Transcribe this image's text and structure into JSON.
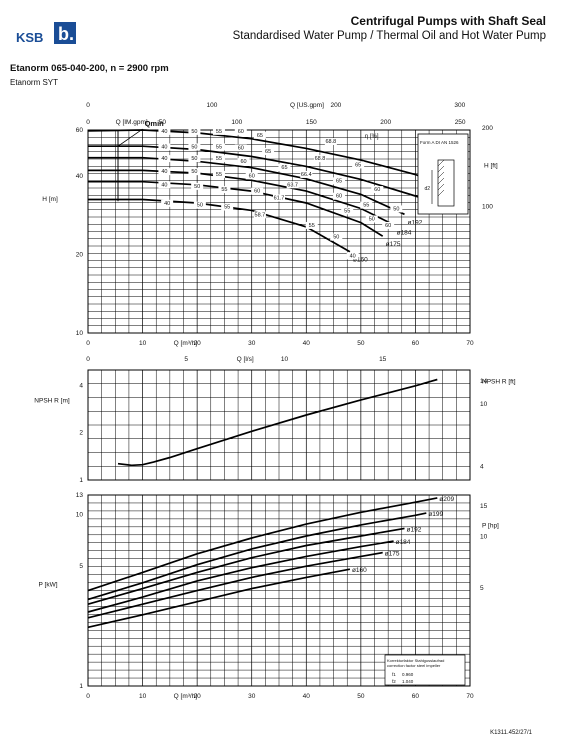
{
  "header": {
    "brand": "KSB",
    "title": "Centrifugal Pumps with Shaft Seal",
    "subtitle": "Standardised Water Pump / Thermal Oil and Hot Water Pump",
    "model": "Etanorm 065-040-200, n = 2900 rpm",
    "model_variant": "Etanorm SYT",
    "doc_code": "K1311.452/27/1"
  },
  "colors": {
    "brand": "#1a4d96",
    "grid": "#000000",
    "curve": "#000000"
  },
  "chart_data": [
    {
      "id": "head",
      "type": "line",
      "xlabel": "Q [m³/h]",
      "ylabel": "H [m]",
      "xlim": [
        0,
        70
      ],
      "ylim": [
        10,
        60
      ],
      "log_y": true,
      "x_ticks": [
        0,
        10,
        20,
        30,
        40,
        50,
        60,
        70
      ],
      "y_ticks": [
        10,
        20,
        40,
        60
      ],
      "top_axis_1": {
        "label": "Q [US.gpm]",
        "ticks": [
          0,
          100,
          200,
          300
        ]
      },
      "top_axis_2": {
        "label": "Q [IM.gpm]",
        "ticks": [
          0,
          50,
          100,
          150,
          200,
          250
        ]
      },
      "bottom_axis_2": {
        "label": "Q [l/s]",
        "ticks": [
          0,
          5,
          10,
          15
        ]
      },
      "right_axis": {
        "label": "H [ft]",
        "ticks": [
          100,
          200
        ]
      },
      "annotation_qmin": "Qmin",
      "eta_label": "η [%]",
      "inset_label": "Form A DI AN 1526",
      "inset_mark": "d2",
      "series": [
        {
          "name": "ø209",
          "x": [
            0,
            10,
            20,
            30,
            40,
            50,
            60,
            64
          ],
          "y": [
            59.5,
            60,
            58.5,
            55.5,
            51,
            46,
            40.5,
            37.5
          ]
        },
        {
          "name": "ø199",
          "x": [
            0,
            10,
            20,
            30,
            40,
            50,
            60,
            62
          ],
          "y": [
            52,
            52,
            50.5,
            47.5,
            43.5,
            38.8,
            33.5,
            32.5
          ]
        },
        {
          "name": "ø192",
          "x": [
            0,
            10,
            20,
            30,
            40,
            50,
            58
          ],
          "y": [
            47,
            47,
            45.5,
            43,
            39,
            34,
            28.5
          ]
        },
        {
          "name": "ø184",
          "x": [
            0,
            10,
            20,
            30,
            40,
            50,
            56
          ],
          "y": [
            42,
            42,
            41,
            38.5,
            35,
            30,
            26
          ]
        },
        {
          "name": "ø175",
          "x": [
            0,
            10,
            20,
            30,
            40,
            50,
            54
          ],
          "y": [
            38,
            38,
            37,
            35,
            31.5,
            26.5,
            23.5
          ]
        },
        {
          "name": "ø160",
          "x": [
            0,
            10,
            20,
            30,
            40,
            48
          ],
          "y": [
            32.5,
            32.5,
            31.5,
            29.5,
            25.5,
            20.5
          ]
        }
      ],
      "eta_labels": [
        {
          "t": "40",
          "x": 14,
          "y": 58.5
        },
        {
          "t": "50",
          "x": 19.5,
          "y": 58.5
        },
        {
          "t": "55",
          "x": 24,
          "y": 58.5
        },
        {
          "t": "60",
          "x": 28,
          "y": 58.5
        },
        {
          "t": "65",
          "x": 31.5,
          "y": 56.5
        },
        {
          "t": "68.8",
          "x": 44.5,
          "y": 53.5
        },
        {
          "t": "40",
          "x": 14,
          "y": 51
        },
        {
          "t": "50",
          "x": 19.5,
          "y": 51
        },
        {
          "t": "55",
          "x": 24,
          "y": 51
        },
        {
          "t": "60",
          "x": 28,
          "y": 50.5
        },
        {
          "t": "65",
          "x": 33,
          "y": 49
        },
        {
          "t": "68.8",
          "x": 42.5,
          "y": 46
        },
        {
          "t": "65",
          "x": 49.5,
          "y": 43.5
        },
        {
          "t": "40",
          "x": 14,
          "y": 46
        },
        {
          "t": "50",
          "x": 19.5,
          "y": 46
        },
        {
          "t": "55",
          "x": 24,
          "y": 46
        },
        {
          "t": "60",
          "x": 28.5,
          "y": 44.8
        },
        {
          "t": "65",
          "x": 36,
          "y": 42.5
        },
        {
          "t": "66.4",
          "x": 40,
          "y": 40
        },
        {
          "t": "65",
          "x": 46,
          "y": 37.8
        },
        {
          "t": "60",
          "x": 53,
          "y": 35
        },
        {
          "t": "40",
          "x": 14,
          "y": 41
        },
        {
          "t": "50",
          "x": 19.5,
          "y": 41
        },
        {
          "t": "55",
          "x": 24,
          "y": 40
        },
        {
          "t": "60",
          "x": 30,
          "y": 39.5
        },
        {
          "t": "63.7",
          "x": 37.5,
          "y": 36.5
        },
        {
          "t": "60",
          "x": 46,
          "y": 33
        },
        {
          "t": "55",
          "x": 51,
          "y": 30.5
        },
        {
          "t": "50",
          "x": 56.5,
          "y": 29.5
        },
        {
          "t": "40",
          "x": 14,
          "y": 36.5
        },
        {
          "t": "50",
          "x": 20,
          "y": 36
        },
        {
          "t": "55",
          "x": 25,
          "y": 35
        },
        {
          "t": "60",
          "x": 31,
          "y": 34.5
        },
        {
          "t": "61.7",
          "x": 35,
          "y": 32.5
        },
        {
          "t": "55",
          "x": 47.5,
          "y": 29
        },
        {
          "t": "50",
          "x": 52,
          "y": 27
        },
        {
          "t": "60",
          "x": 55,
          "y": 25.5
        },
        {
          "t": "40",
          "x": 14.5,
          "y": 31
        },
        {
          "t": "50",
          "x": 20.5,
          "y": 30.5
        },
        {
          "t": "55",
          "x": 25.5,
          "y": 30
        },
        {
          "t": "58.7",
          "x": 31.5,
          "y": 28
        },
        {
          "t": "55",
          "x": 41,
          "y": 25.5
        },
        {
          "t": "50",
          "x": 45.5,
          "y": 23
        },
        {
          "t": "40",
          "x": 48.5,
          "y": 19.5
        }
      ]
    },
    {
      "id": "npsh",
      "type": "line",
      "ylabel": "NPSH R [m]",
      "xlim": [
        0,
        70
      ],
      "ylim": [
        1,
        5
      ],
      "log_y": true,
      "y_ticks": [
        1,
        2,
        4
      ],
      "right_axis": {
        "label": "NPSH R [ft]",
        "ticks": [
          4,
          10,
          14
        ]
      },
      "series": [
        {
          "name": "NPSHR",
          "x": [
            5.5,
            8,
            10,
            12,
            15,
            20,
            30,
            40,
            50,
            60,
            64
          ],
          "y": [
            1.27,
            1.24,
            1.25,
            1.3,
            1.39,
            1.58,
            2.04,
            2.59,
            3.23,
            3.97,
            4.35
          ]
        }
      ]
    },
    {
      "id": "power",
      "type": "line",
      "xlabel": "Q [m³/h]",
      "ylabel": "P [kW]",
      "xlim": [
        0,
        70
      ],
      "ylim": [
        1,
        13
      ],
      "log_y": true,
      "x_ticks": [
        0,
        10,
        20,
        30,
        40,
        50,
        60,
        70
      ],
      "y_ticks": [
        1,
        5,
        10,
        13
      ],
      "right_axis": {
        "label": "P [hp]",
        "ticks": [
          5,
          10,
          15
        ]
      },
      "note": {
        "line1": "Korrekturfaktor Stahlgusslaufrad",
        "line2": "correction factor steel impeller",
        "f1_label": "f1",
        "f1": "0.960",
        "f2_label": "f2",
        "f2": "1.040"
      },
      "series": [
        {
          "name": "ø209",
          "x": [
            0,
            10,
            20,
            30,
            40,
            50,
            60,
            64
          ],
          "y": [
            3.6,
            4.6,
            5.9,
            7.3,
            8.8,
            10.3,
            11.8,
            12.5
          ]
        },
        {
          "name": "ø199",
          "x": [
            0,
            10,
            20,
            30,
            40,
            50,
            60,
            62
          ],
          "y": [
            3.2,
            4.0,
            5.1,
            6.3,
            7.5,
            8.7,
            9.9,
            10.2
          ]
        },
        {
          "name": "ø192",
          "x": [
            0,
            10,
            20,
            30,
            40,
            50,
            58
          ],
          "y": [
            3.0,
            3.7,
            4.6,
            5.6,
            6.6,
            7.5,
            8.3
          ]
        },
        {
          "name": "ø184",
          "x": [
            0,
            10,
            20,
            30,
            40,
            50,
            56
          ],
          "y": [
            2.7,
            3.3,
            4.1,
            4.9,
            5.7,
            6.5,
            7.0
          ]
        },
        {
          "name": "ø175",
          "x": [
            0,
            10,
            20,
            30,
            40,
            50,
            54
          ],
          "y": [
            2.5,
            3.0,
            3.6,
            4.3,
            5.0,
            5.7,
            6.0
          ]
        },
        {
          "name": "ø160",
          "x": [
            0,
            10,
            20,
            30,
            40,
            48
          ],
          "y": [
            2.2,
            2.6,
            3.1,
            3.7,
            4.3,
            4.8
          ]
        }
      ]
    }
  ]
}
